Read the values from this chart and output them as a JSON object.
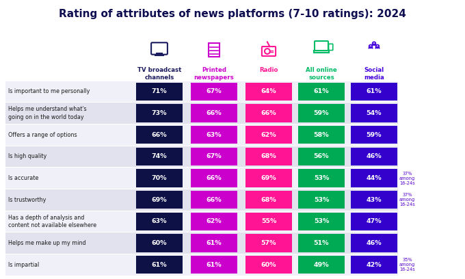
{
  "title": "Rating of attributes of news platforms (7-10 ratings): 2024",
  "columns": [
    "TV broadcast\nchannels",
    "Printed\nnewspapers",
    "Radio",
    "All online\nsources",
    "Social\nmedia"
  ],
  "column_header_colors": [
    "#1a1a5e",
    "#cc00cc",
    "#ff1493",
    "#00bb66",
    "#4400dd"
  ],
  "rows": [
    {
      "label": "Is important to me personally",
      "values": [
        71,
        67,
        64,
        61,
        61
      ],
      "note": null
    },
    {
      "label": "Helps me understand what's\ngoing on in the world today",
      "values": [
        73,
        66,
        66,
        59,
        54
      ],
      "note": null
    },
    {
      "label": "Offers a range of options",
      "values": [
        66,
        63,
        62,
        58,
        59
      ],
      "note": null
    },
    {
      "label": "Is high quality",
      "values": [
        74,
        67,
        68,
        56,
        46
      ],
      "note": null
    },
    {
      "label": "Is accurate",
      "values": [
        70,
        66,
        69,
        53,
        44
      ],
      "note": "37%\namong\n16-24s"
    },
    {
      "label": "Is trustworthy",
      "values": [
        69,
        66,
        68,
        53,
        43
      ],
      "note": "37%\namong\n16-24s"
    },
    {
      "label": "Has a depth of analysis and\ncontent not available elsewhere",
      "values": [
        63,
        62,
        55,
        53,
        47
      ],
      "note": null
    },
    {
      "label": "Helps me make up my mind",
      "values": [
        60,
        61,
        57,
        51,
        46
      ],
      "note": null
    },
    {
      "label": "Is impartial",
      "values": [
        61,
        61,
        60,
        49,
        42
      ],
      "note": "35%\namong\n16-24s"
    }
  ],
  "cell_colors": [
    "#0d1145",
    "#cc00cc",
    "#ff1493",
    "#00aa55",
    "#3300cc"
  ],
  "row_bg_even": "#f0f0f8",
  "row_bg_odd": "#e2e2ee",
  "bg_color": "#ffffff",
  "note_color": "#5500cc",
  "title_color": "#0d0d50",
  "label_color": "#1a1a1a"
}
